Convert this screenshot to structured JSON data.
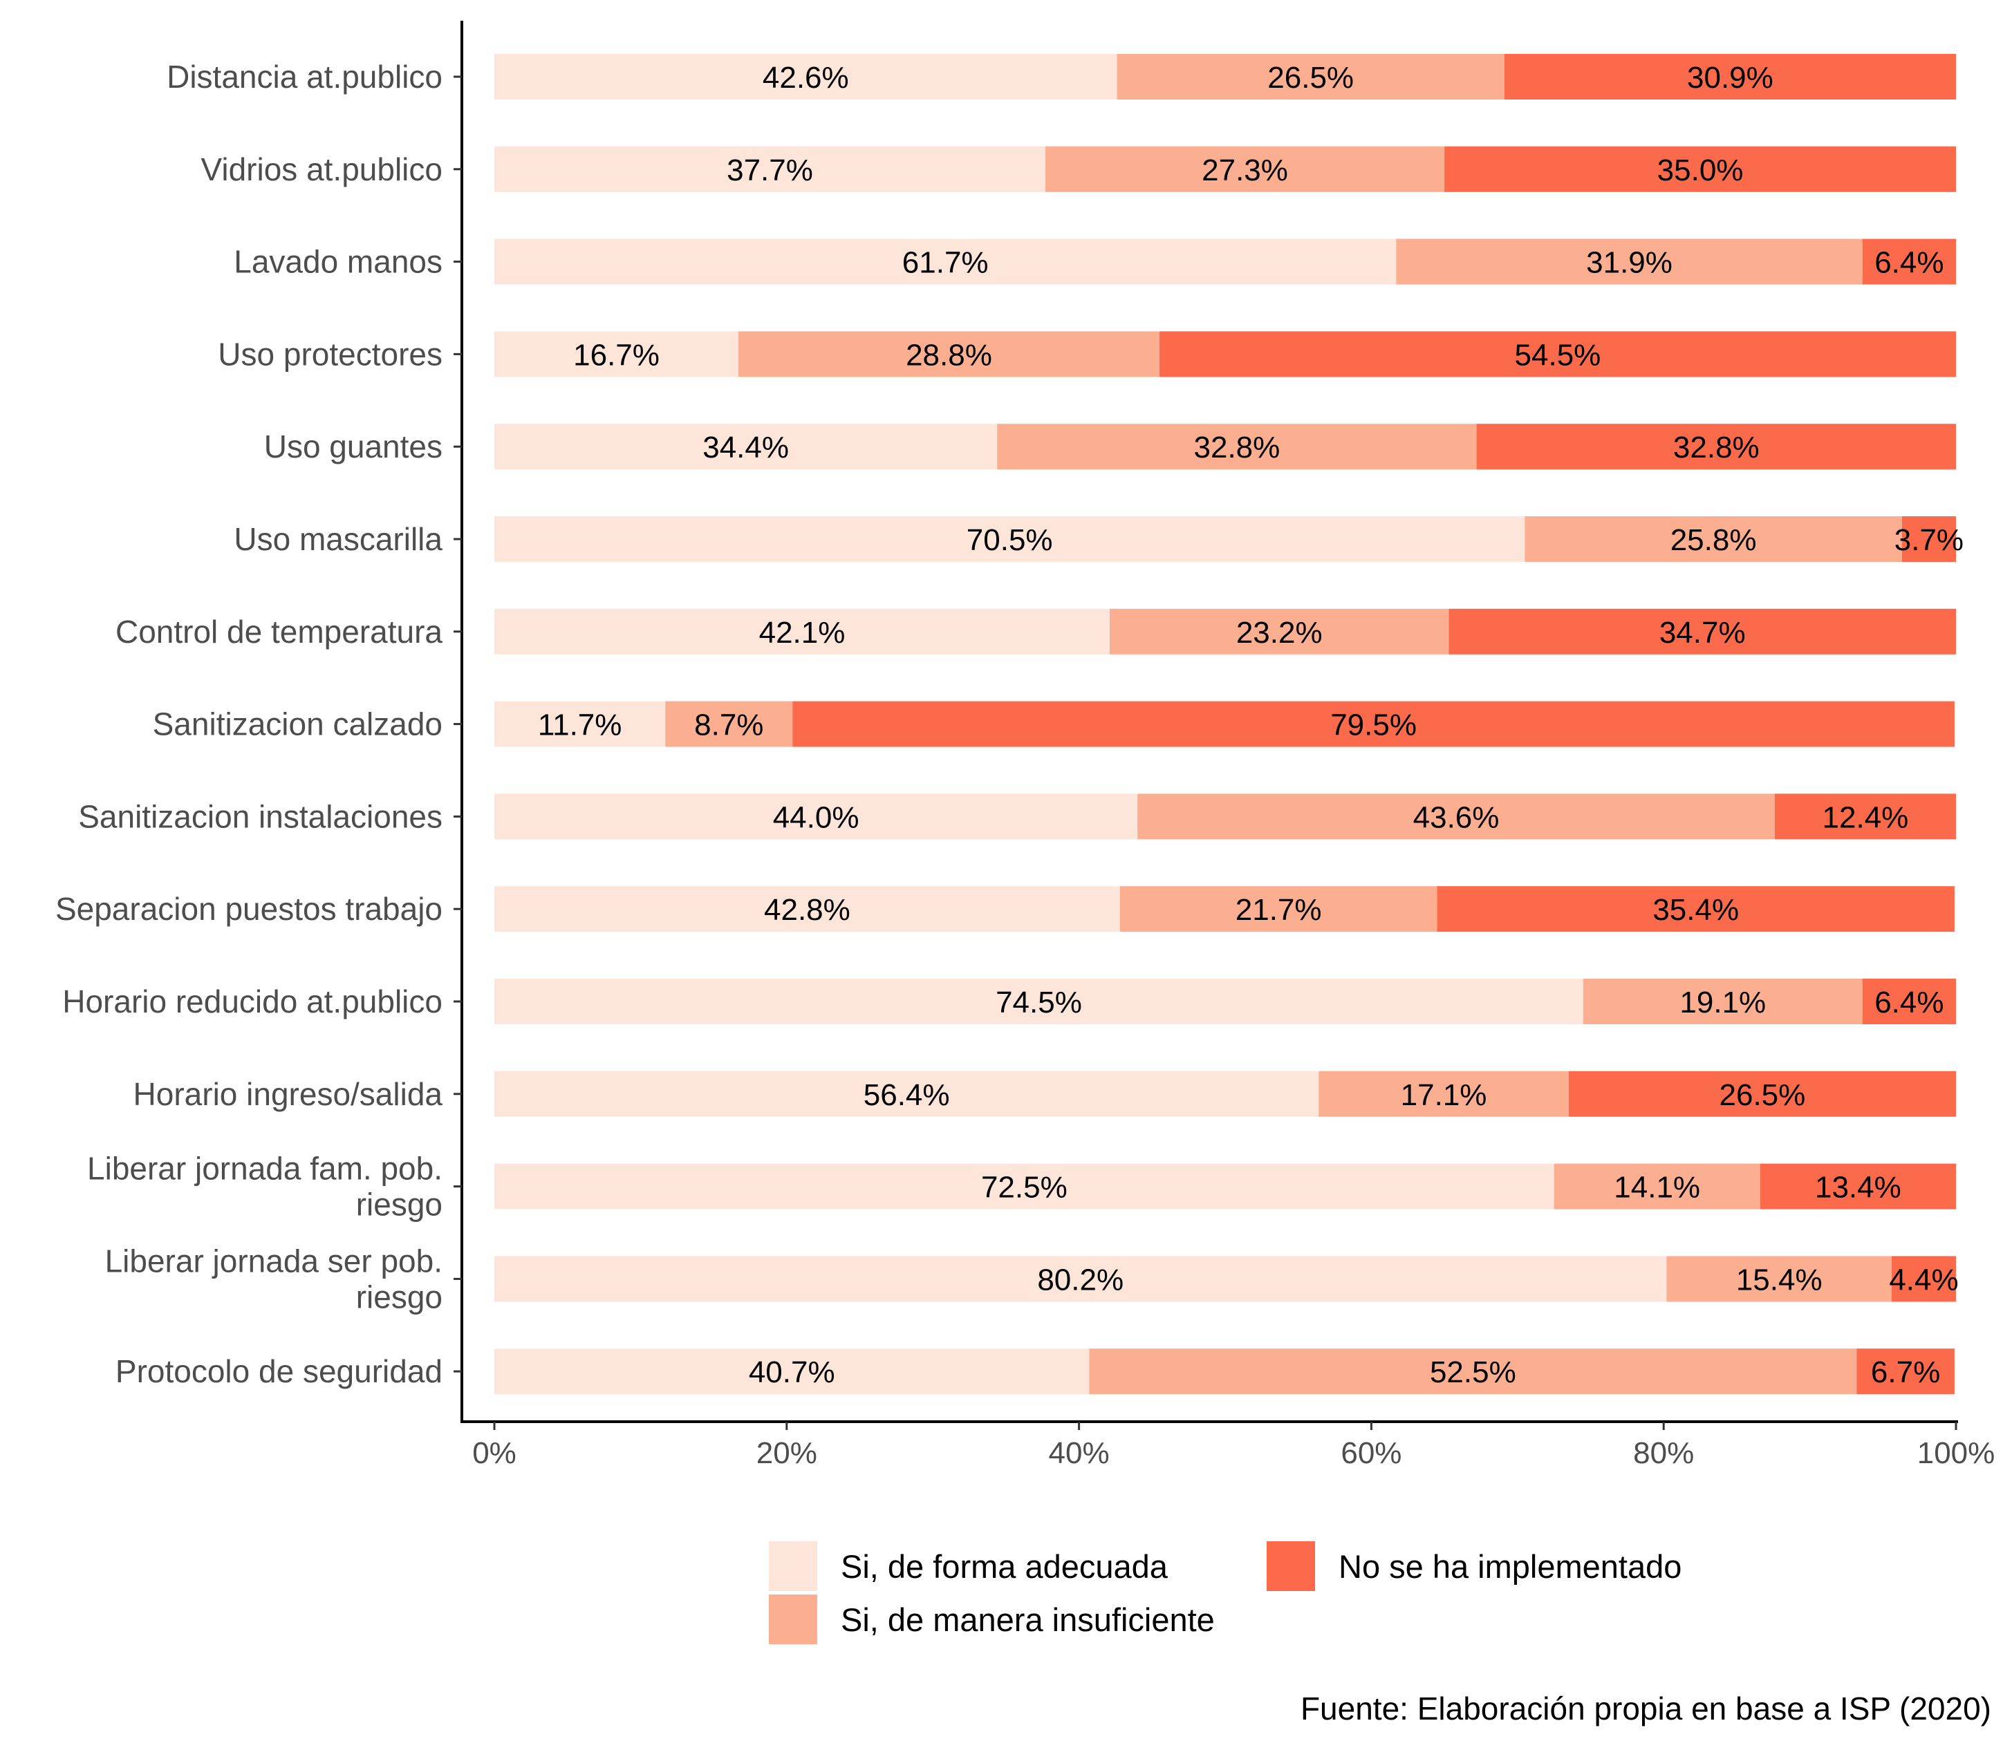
{
  "colors": {
    "Si, de forma adecuada": "#fee5d9",
    "Si, de manera insuficiente": "#fcae91",
    "No se ha implementado": "#fb6a4a",
    "axis": "#000000"
  },
  "legend": {
    "items": [
      "Si, de forma adecuada",
      "Si, de manera insuficiente",
      "No se ha implementado"
    ]
  },
  "caption": "Fuente: Elaboración propia en base a ISP (2020)",
  "chart_data": {
    "type": "bar",
    "orientation": "horizontal",
    "stacked": true,
    "categories": [
      "Distancia at.publico",
      "Vidrios at.publico",
      "Lavado manos",
      "Uso protectores",
      "Uso guantes",
      "Uso mascarilla",
      "Control de temperatura",
      "Sanitizacion calzado",
      "Sanitizacion instalaciones",
      "Separacion puestos trabajo",
      "Horario reducido at.publico",
      "Horario ingreso/salida",
      "Liberar jornada fam. pob. riesgo",
      "Liberar jornada ser pob. riesgo",
      "Protocolo de seguridad"
    ],
    "category_lines": [
      [
        "Distancia at.publico"
      ],
      [
        "Vidrios at.publico"
      ],
      [
        "Lavado manos"
      ],
      [
        "Uso protectores"
      ],
      [
        "Uso guantes"
      ],
      [
        "Uso mascarilla"
      ],
      [
        "Control de temperatura"
      ],
      [
        "Sanitizacion calzado"
      ],
      [
        "Sanitizacion instalaciones"
      ],
      [
        "Separacion puestos trabajo"
      ],
      [
        "Horario reducido at.publico"
      ],
      [
        "Horario ingreso/salida"
      ],
      [
        "Liberar jornada fam. pob.",
        "riesgo"
      ],
      [
        "Liberar jornada ser pob.",
        "riesgo"
      ],
      [
        "Protocolo de seguridad"
      ]
    ],
    "series": [
      {
        "name": "Si, de forma adecuada",
        "values": [
          42.6,
          37.7,
          61.7,
          16.7,
          34.4,
          70.5,
          42.1,
          11.7,
          44.0,
          42.8,
          74.5,
          56.4,
          72.5,
          80.2,
          40.7
        ]
      },
      {
        "name": "Si, de manera insuficiente",
        "values": [
          26.5,
          27.3,
          31.9,
          28.8,
          32.8,
          25.8,
          23.2,
          8.7,
          43.6,
          21.7,
          19.1,
          17.1,
          14.1,
          15.4,
          52.5
        ]
      },
      {
        "name": "No se ha implementado",
        "values": [
          30.9,
          35.0,
          6.4,
          54.5,
          32.8,
          3.7,
          34.7,
          79.5,
          12.4,
          35.4,
          6.4,
          26.5,
          13.4,
          4.4,
          6.7
        ]
      }
    ],
    "xlim": [
      0,
      100
    ],
    "x_ticks": [
      0,
      20,
      40,
      60,
      80,
      100
    ],
    "x_tick_labels": [
      "0%",
      "20%",
      "40%",
      "60%",
      "80%",
      "100%"
    ],
    "value_suffix": "%",
    "grid": false,
    "legend_position": "bottom",
    "xlabel": "",
    "ylabel": ""
  }
}
